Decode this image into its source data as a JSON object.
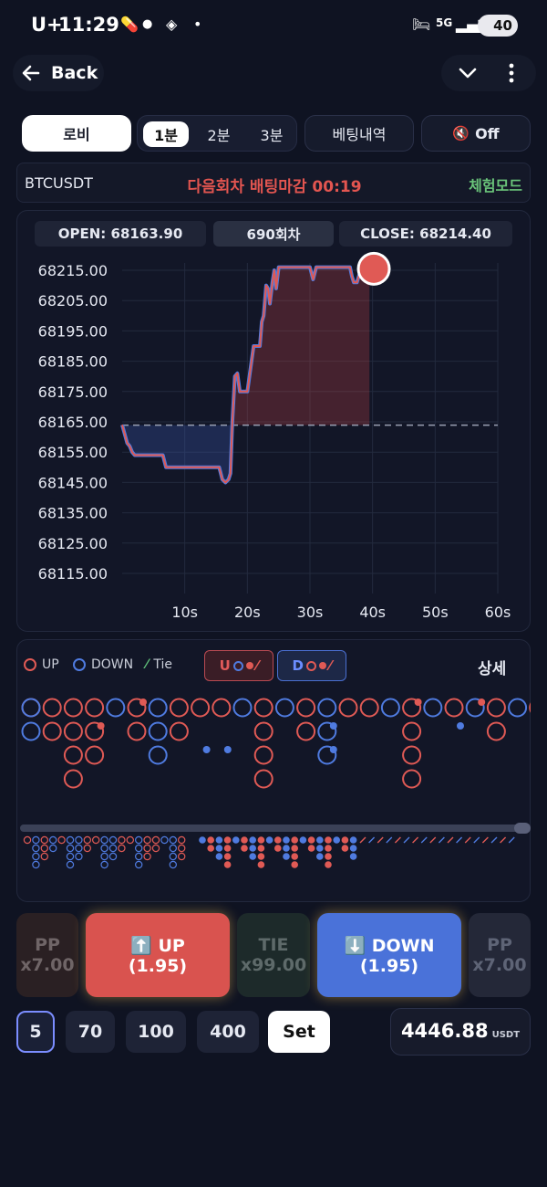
{
  "status_bar": {
    "carrier": "U+",
    "time": "11:29",
    "network": "5G",
    "battery": "40"
  },
  "header": {
    "back_label": "Back"
  },
  "tabs": {
    "lobby": "로비",
    "intervals": [
      "1분",
      "2분",
      "3분"
    ],
    "active_interval": 0,
    "history": "베팅내역",
    "sound": "Off"
  },
  "info": {
    "symbol": "BTCUSDT",
    "countdown": "다음회차 배팅마감 00:19",
    "mode": "체험모드"
  },
  "round": {
    "open": "OPEN: 68163.90",
    "round": "690회차",
    "close": "CLOSE: 68214.40"
  },
  "chart_data": {
    "type": "line",
    "open_price": 68163.9,
    "close_price": 68214.4,
    "xlim": [
      0,
      60
    ],
    "ylim": [
      68110,
      68220
    ],
    "x_ticks": [
      "10s",
      "20s",
      "30s",
      "40s",
      "50s",
      "60s"
    ],
    "y_ticks": [
      "68215.00",
      "68205.00",
      "68195.00",
      "68185.00",
      "68175.00",
      "68165.00",
      "68155.00",
      "68145.00",
      "68135.00",
      "68125.00",
      "68115.00"
    ],
    "series": [
      {
        "x": [
          0,
          0.4,
          0.8,
          1.2,
          1.6,
          2,
          6.5,
          7,
          14,
          15.5,
          16,
          16.5,
          17,
          17.3,
          17.6,
          18,
          18.4,
          18.8,
          19.2,
          20,
          21,
          22,
          22.3,
          22.6,
          23,
          23.3,
          23.6,
          24,
          24.3,
          24.6,
          25,
          25.5,
          26,
          29,
          30,
          30.5,
          31,
          33,
          34,
          34.5,
          35,
          36,
          36.4,
          36.7,
          37,
          37.5,
          38
        ],
        "y": [
          68164,
          68161,
          68158,
          68157,
          68155,
          68154,
          68154,
          68150,
          68150,
          68150,
          68146,
          68145,
          68146,
          68148,
          68165,
          68180,
          68181,
          68175,
          68175,
          68175,
          68190,
          68190,
          68198,
          68200,
          68210,
          68209,
          68204,
          68211,
          68215,
          68209,
          68216,
          68216,
          68216,
          68216,
          68216,
          68212,
          68216,
          68216,
          68216,
          68216,
          68216,
          68216,
          68216,
          68213,
          68211,
          68211,
          68214.4
        ]
      }
    ]
  },
  "legend": {
    "up": "UP",
    "down": "DOWN",
    "tie": "Tie",
    "u_btn": "U",
    "d_btn": "D",
    "detail": "상세"
  },
  "big_road": [
    {
      "r": "U",
      "col": 0,
      "rows": 1
    },
    {
      "r": "D",
      "col": 0,
      "rows": 2
    },
    {
      "r": "U",
      "col": 1,
      "rows": 2
    },
    {
      "r": "U",
      "col": 2,
      "rows": 4
    },
    {
      "r": "U",
      "col": 3,
      "rows": 3
    },
    {
      "r": "D",
      "col": 4,
      "rows": 1
    },
    {
      "r": "U",
      "col": 5,
      "rows": 2
    },
    {
      "r": "D",
      "col": 6,
      "rows": 3
    },
    {
      "r": "U",
      "col": 7,
      "rows": 2
    },
    {
      "r": "U",
      "col": 8,
      "rows": 1
    },
    {
      "r": "U",
      "col": 9,
      "rows": 1
    },
    {
      "r": "D",
      "col": 10,
      "rows": 1
    },
    {
      "r": "U",
      "col": 11,
      "rows": 4
    },
    {
      "r": "D",
      "col": 12,
      "rows": 1
    },
    {
      "r": "U",
      "col": 13,
      "rows": 2
    },
    {
      "r": "D",
      "col": 14,
      "rows": 3
    },
    {
      "r": "U",
      "col": 15,
      "rows": 1
    },
    {
      "r": "U",
      "col": 16,
      "rows": 1
    },
    {
      "r": "D",
      "col": 17,
      "rows": 1
    },
    {
      "r": "U",
      "col": 18,
      "rows": 4
    },
    {
      "r": "D",
      "col": 19,
      "rows": 1
    },
    {
      "r": "U",
      "col": 20,
      "rows": 1
    },
    {
      "r": "D",
      "col": 21,
      "rows": 1
    },
    {
      "r": "U",
      "col": 22,
      "rows": 2
    },
    {
      "r": "D",
      "col": 23,
      "rows": 1
    },
    {
      "r": "U",
      "col": 24,
      "rows": 1
    }
  ],
  "bets": {
    "pp_left": {
      "label": "PP",
      "odds": "x7.00"
    },
    "up": {
      "label": "⬆️ UP",
      "odds": "(1.95)"
    },
    "tie": {
      "label": "TIE",
      "odds": "x99.00"
    },
    "down": {
      "label": "⬇️ DOWN",
      "odds": "(1.95)"
    },
    "pp_right": {
      "label": "PP",
      "odds": "x7.00"
    }
  },
  "amounts": [
    "5",
    "70",
    "100",
    "400"
  ],
  "set_label": "Set",
  "balance": {
    "value": "4446.88",
    "unit": "USDT"
  },
  "colors": {
    "up": "#e05a55",
    "down": "#4f7be0",
    "tie": "#5fbf7a",
    "bg": "#0f1322"
  }
}
